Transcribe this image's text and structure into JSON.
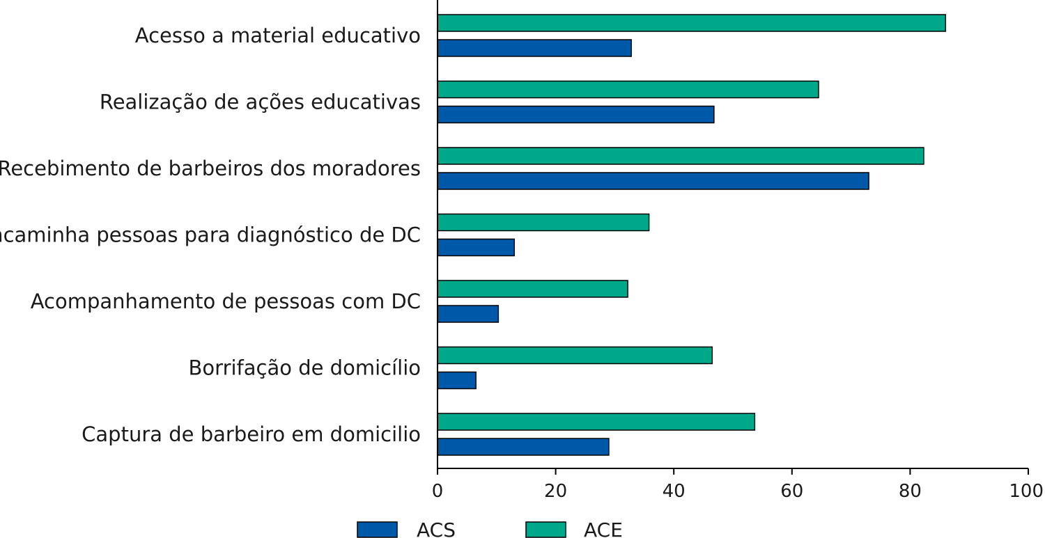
{
  "chart_data": {
    "type": "bar",
    "orientation": "horizontal",
    "categories": [
      "Acesso a material educativo",
      "Realização de ações educativas",
      "Recebimento de barbeiros dos moradores",
      "Encaminha pessoas para diagnóstico de DC",
      "Acompanhamento de pessoas com DC",
      "Borrifação de domicílio",
      "Captura de barbeiro em domicilio"
    ],
    "series": [
      {
        "name": "ACE",
        "color": "#00A88A",
        "values": [
          86,
          64.5,
          82.3,
          35.8,
          32.2,
          46.5,
          53.7
        ]
      },
      {
        "name": "ACS",
        "color": "#0058A8",
        "values": [
          32.8,
          46.8,
          73,
          13,
          10.3,
          6.5,
          29
        ]
      }
    ],
    "xlim": [
      0,
      100
    ],
    "xticks": [
      "0",
      "20",
      "40",
      "60",
      "80",
      "100"
    ],
    "xlabel": "",
    "ylabel": "",
    "title": "",
    "grid": false,
    "legend": {
      "position": "bottom",
      "entries": [
        "ACS",
        "ACE"
      ]
    }
  }
}
